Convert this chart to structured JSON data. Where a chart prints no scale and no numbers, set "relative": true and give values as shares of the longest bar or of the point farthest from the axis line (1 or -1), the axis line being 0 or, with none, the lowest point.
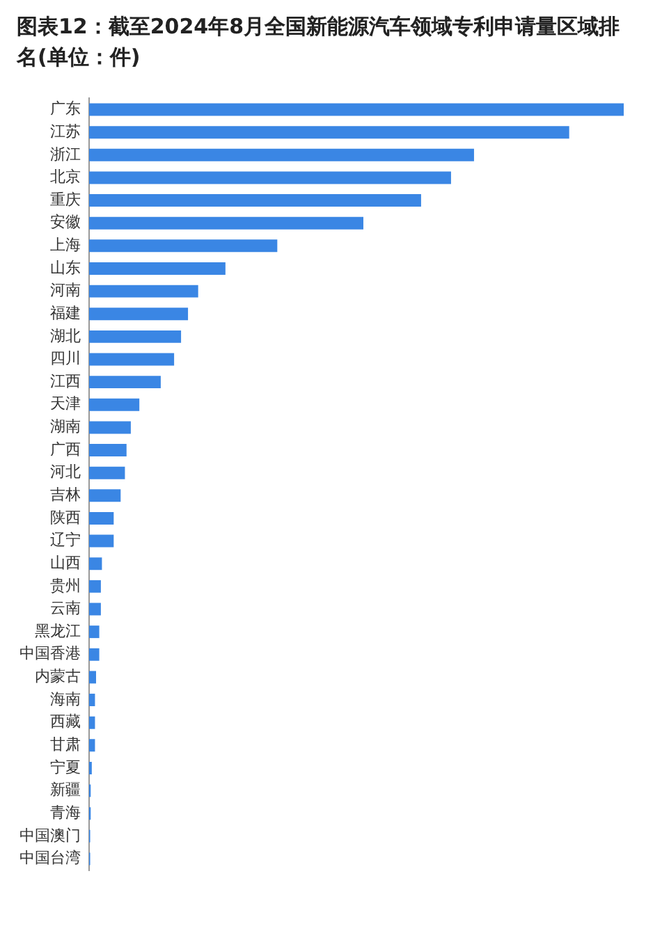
{
  "chart_data": {
    "type": "bar",
    "orientation": "horizontal",
    "relative": true,
    "title": "图表12：截至2024年8月全国新能源汽车领域专利申请量区域排名(单位：件)",
    "categories": [
      "广东",
      "江苏",
      "浙江",
      "北京",
      "重庆",
      "安徽",
      "上海",
      "山东",
      "河南",
      "福建",
      "湖北",
      "四川",
      "江西",
      "天津",
      "湖南",
      "广西",
      "河北",
      "吉林",
      "陕西",
      "辽宁",
      "山西",
      "贵州",
      "云南",
      "黑龙江",
      "中国香港",
      "内蒙古",
      "海南",
      "西藏",
      "甘肃",
      "宁夏",
      "新疆",
      "青海",
      "中国澳门",
      "中国台湾"
    ],
    "values": [
      1,
      0.898,
      0.72,
      0.677,
      0.621,
      0.513,
      0.352,
      0.255,
      0.204,
      0.185,
      0.172,
      0.159,
      0.134,
      0.094,
      0.078,
      0.07,
      0.067,
      0.059,
      0.046,
      0.046,
      0.024,
      0.022,
      0.022,
      0.019,
      0.019,
      0.013,
      0.011,
      0.011,
      0.011,
      0.005,
      0.003,
      0.003,
      0.002,
      0.002
    ],
    "color": "#3a86e4",
    "grid": false,
    "legend": false
  }
}
